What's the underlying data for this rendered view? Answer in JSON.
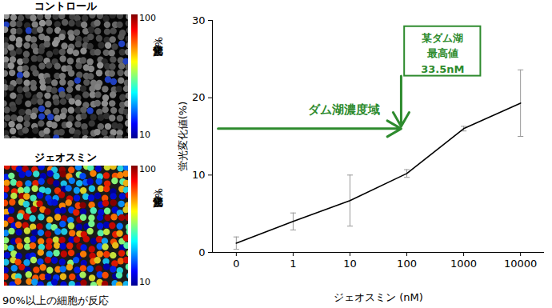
{
  "chart_data": {
    "type": "line",
    "categories": [
      "0",
      "1",
      "10",
      "100",
      "1000",
      "10000"
    ],
    "values": [
      1.2,
      4.0,
      6.7,
      10.2,
      16.0,
      19.3
    ],
    "errors": [
      0.8,
      1.1,
      3.3,
      0.5,
      0.3,
      4.3
    ],
    "color": "#000000",
    "x_label": "ジェオスミン (nM)",
    "y_label": "蛍光変化値(%)",
    "ylim": [
      0,
      30
    ],
    "yticks": [
      0,
      10,
      20,
      30
    ],
    "annotations": [
      {
        "type": "box",
        "text": [
          "某ダム湖",
          "最高値",
          "33.5nM"
        ],
        "color": "#2e8b2e"
      },
      {
        "type": "arrow",
        "text": "ダム湖濃度域",
        "color": "#2e8b2e"
      }
    ]
  },
  "images": [
    {
      "title": "コントロール",
      "colorbar": {
        "range": [
          10,
          100
        ],
        "ticks": [
          10,
          100
        ],
        "label": "蛍光変化値（%）"
      }
    },
    {
      "title": "ジェオスミン",
      "colorbar": {
        "range": [
          10,
          100
        ],
        "ticks": [
          10,
          100
        ],
        "label": "蛍光変化値（%）"
      }
    }
  ],
  "caption": "90%以上の細胞が反応"
}
